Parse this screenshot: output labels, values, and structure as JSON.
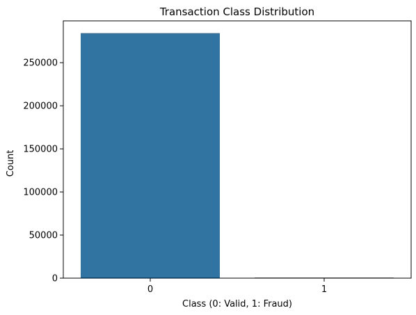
{
  "chart_data": {
    "type": "bar",
    "title": "Transaction Class Distribution",
    "xlabel": "Class (0: Valid, 1: Fraud)",
    "ylabel": "Count",
    "categories": [
      "0",
      "1"
    ],
    "values": [
      284315,
      492
    ],
    "ylim": [
      0,
      298531
    ],
    "yticks": [
      0,
      50000,
      100000,
      150000,
      200000,
      250000
    ],
    "yticklabels": [
      "0",
      "50000",
      "100000",
      "150000",
      "200000",
      "250000"
    ],
    "grid": false,
    "colors": {
      "bars": [
        "#3274a1",
        "#e1812c"
      ],
      "axis": "#000000"
    }
  }
}
